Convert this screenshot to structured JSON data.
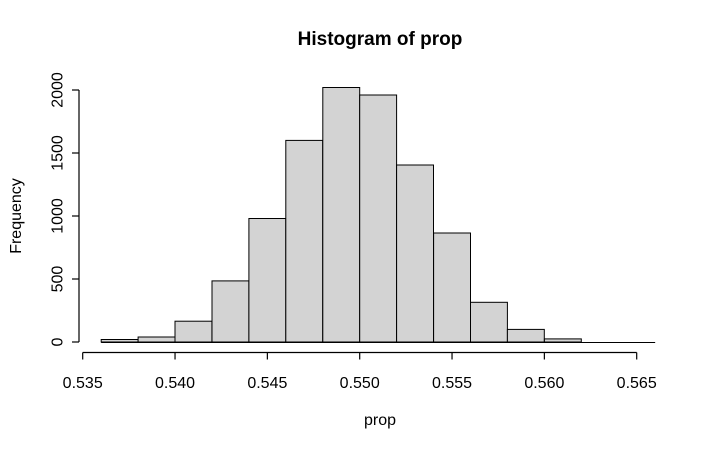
{
  "window": {
    "background": "#ffffff"
  },
  "chart_data": {
    "type": "bar",
    "subtype": "histogram",
    "title": "Histogram of prop",
    "xlabel": "prop",
    "ylabel": "Frequency",
    "bin_start": 0.536,
    "bin_width": 0.002,
    "counts": [
      20,
      40,
      165,
      485,
      980,
      1600,
      2020,
      1960,
      1405,
      865,
      315,
      100,
      25,
      0,
      0
    ],
    "bin_edges": [
      0.536,
      0.538,
      0.54,
      0.542,
      0.544,
      0.546,
      0.548,
      0.55,
      0.552,
      0.554,
      0.556,
      0.558,
      0.56,
      0.562,
      0.564,
      0.566
    ],
    "x_ticks": [
      0.535,
      0.54,
      0.545,
      0.55,
      0.555,
      0.56,
      0.565
    ],
    "x_tick_labels": [
      "0.535",
      "0.540",
      "0.545",
      "0.550",
      "0.555",
      "0.560",
      "0.565"
    ],
    "y_ticks": [
      0,
      500,
      1000,
      1500,
      2000
    ],
    "y_tick_labels": [
      "0",
      "500",
      "1000",
      "1500",
      "2000"
    ],
    "xlim": [
      0.535,
      0.565
    ],
    "ylim": [
      0,
      2000
    ],
    "grid": false,
    "legend": null,
    "colors": {
      "bar_fill": "#d3d3d3",
      "bar_stroke": "#000000",
      "axis": "#000000",
      "text": "#000000",
      "background": "#ffffff"
    }
  }
}
